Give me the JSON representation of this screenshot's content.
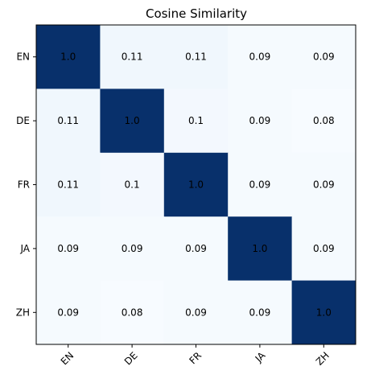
{
  "chart_data": {
    "type": "heatmap",
    "title": "Cosine Similarity",
    "x_labels": [
      "EN",
      "DE",
      "FR",
      "JA",
      "ZH"
    ],
    "y_labels": [
      "EN",
      "DE",
      "FR",
      "JA",
      "ZH"
    ],
    "values": [
      [
        1.0,
        0.11,
        0.11,
        0.09,
        0.09
      ],
      [
        0.11,
        1.0,
        0.1,
        0.09,
        0.08
      ],
      [
        0.11,
        0.1,
        1.0,
        0.09,
        0.09
      ],
      [
        0.09,
        0.09,
        0.09,
        1.0,
        0.09
      ],
      [
        0.09,
        0.08,
        0.09,
        0.09,
        1.0
      ]
    ],
    "value_labels": [
      [
        "1.0",
        "0.11",
        "0.11",
        "0.09",
        "0.09"
      ],
      [
        "0.11",
        "1.0",
        "0.1",
        "0.09",
        "0.08"
      ],
      [
        "0.11",
        "0.1",
        "1.0",
        "0.09",
        "0.09"
      ],
      [
        "0.09",
        "0.09",
        "0.09",
        "1.0",
        "0.09"
      ],
      [
        "0.09",
        "0.08",
        "0.09",
        "0.09",
        "1.0"
      ]
    ],
    "colormap": "Blues",
    "color_low": "#f7fbff",
    "color_high": "#08306b",
    "vmin": 0.08,
    "vmax": 1.0,
    "xtick_rotation": 45
  }
}
